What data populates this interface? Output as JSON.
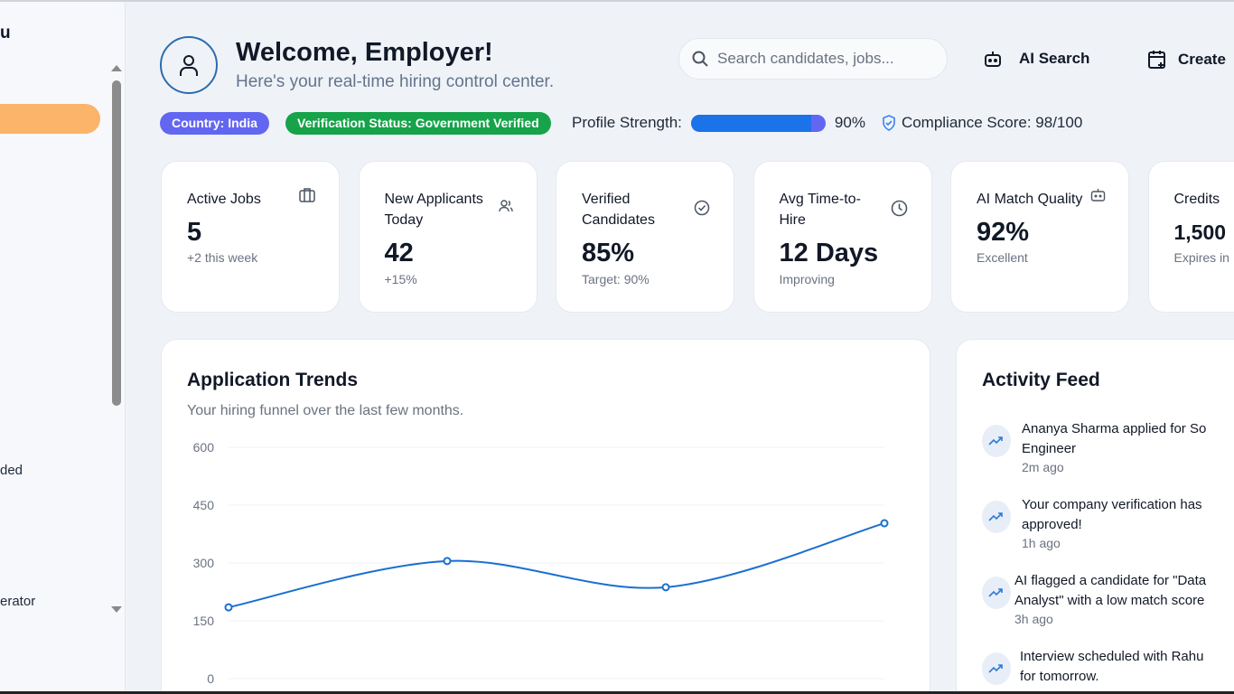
{
  "sidebar": {
    "title": "u",
    "items": [
      {
        "label": "ded"
      },
      {
        "label": "erator"
      }
    ]
  },
  "header": {
    "title": "Welcome, Employer!",
    "subtitle": "Here's your real-time hiring control center.",
    "search_placeholder": "Search candidates, jobs...",
    "ai_search": "AI Search",
    "create": "Create"
  },
  "status": {
    "country": "Country: India",
    "verification": "Verification Status: Government Verified",
    "profile_label": "Profile Strength:",
    "profile_value": "90%",
    "profile_percent": 90,
    "compliance": "Compliance Score: 98/100",
    "colors": {
      "country": "#6366f1",
      "verification": "#16a34a",
      "bar": "#1a73e8"
    }
  },
  "cards": [
    {
      "label": "Active Jobs",
      "value": "5",
      "note": "+2 this week",
      "icon": "briefcase-icon"
    },
    {
      "label": "New Applicants Today",
      "value": "42",
      "note": "+15%",
      "icon": "users-icon"
    },
    {
      "label": "Verified Candidates",
      "value": "85%",
      "note": "Target: 90%",
      "icon": "check-circle-icon"
    },
    {
      "label": "Avg Time-to-Hire",
      "value": "12 Days",
      "note": "Improving",
      "icon": "clock-icon"
    },
    {
      "label": "AI Match Quality",
      "value": "92%",
      "note": "Excellent",
      "icon": "bot-icon"
    },
    {
      "label": "Credits",
      "value": "1,500",
      "note": "Expires in",
      "icon": ""
    }
  ],
  "trends": {
    "title": "Application Trends",
    "subtitle": "Your hiring funnel over the last few months."
  },
  "chart_data": {
    "type": "line",
    "title": "Application Trends",
    "yticks": [
      "600",
      "450",
      "300",
      "150",
      "0"
    ],
    "ylim": [
      0,
      600
    ],
    "grid": true,
    "series": [
      {
        "values": [
          185,
          305,
          237,
          403
        ],
        "color": "#1a6fd1"
      }
    ]
  },
  "feed": {
    "title": "Activity Feed",
    "items": [
      {
        "line1": "Ananya Sharma applied for So",
        "line2": "Engineer",
        "time": "2m ago"
      },
      {
        "line1": "Your company verification has",
        "line2": "approved!",
        "time": "1h ago"
      },
      {
        "line1": "AI flagged a candidate for \"Data",
        "line2": "Analyst\" with a low match score",
        "time": "3h ago"
      },
      {
        "line1": "Interview scheduled with Rahu",
        "line2": "for tomorrow.",
        "time": ""
      }
    ]
  }
}
